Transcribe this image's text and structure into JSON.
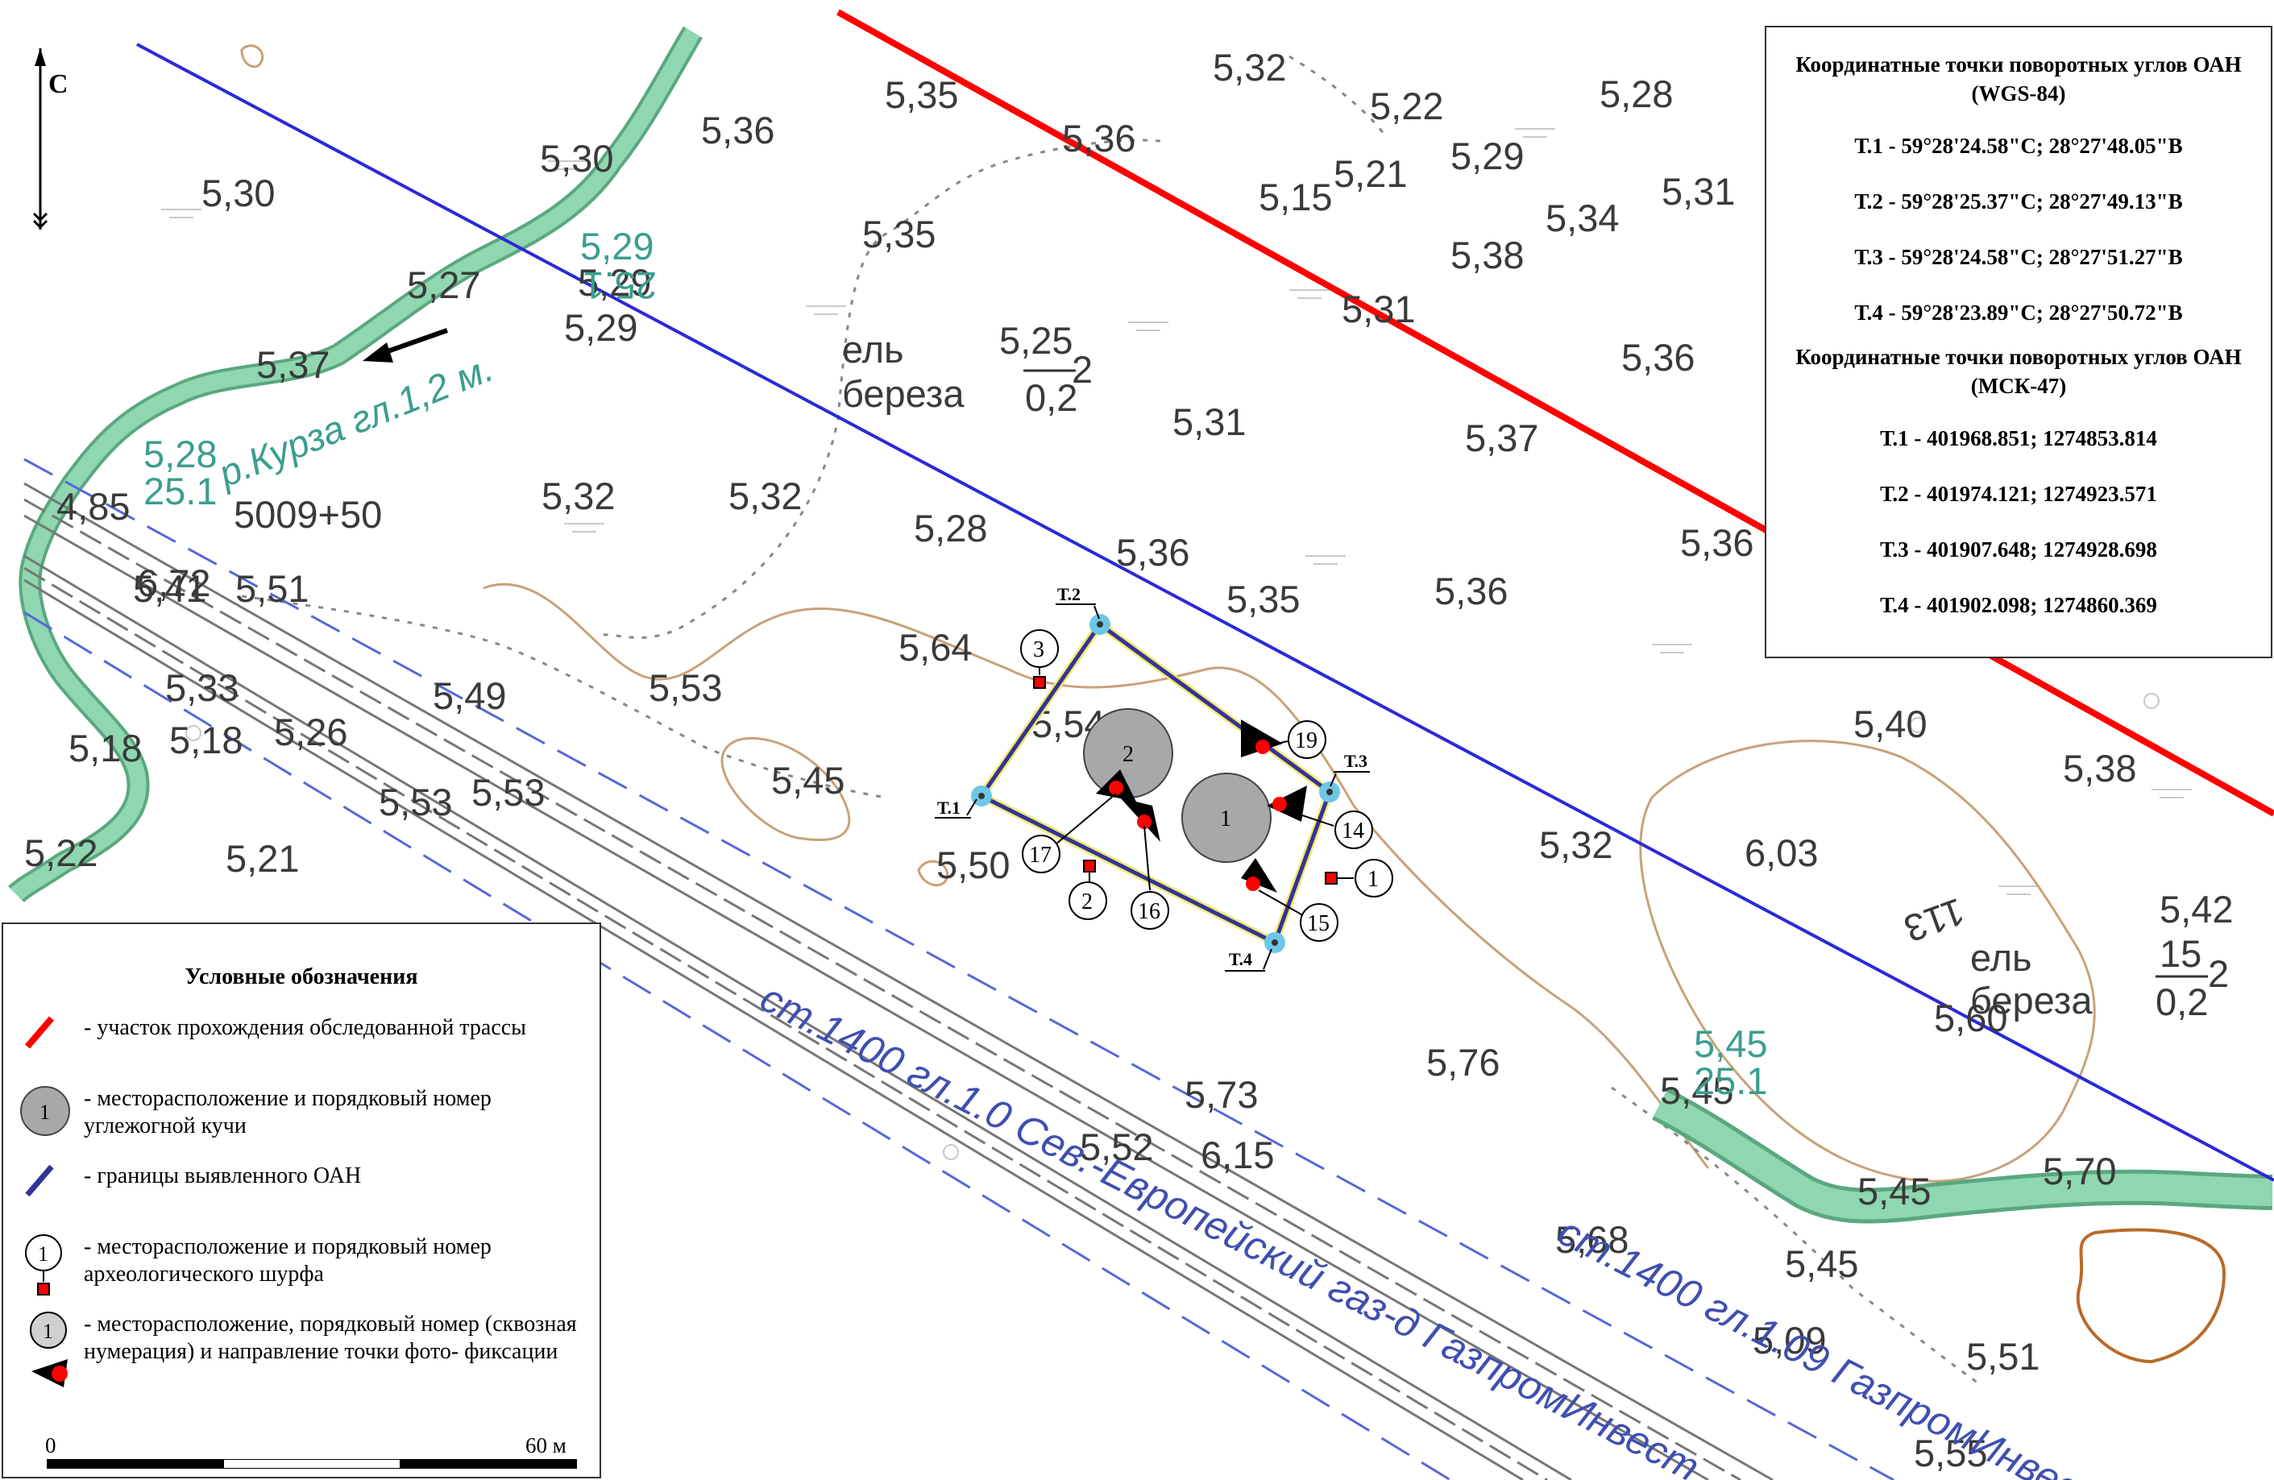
{
  "north_label": "С",
  "coords_panel": {
    "wgs_title": "Координатные точки поворотных углов ОАН (WGS-84)",
    "wgs_points": [
      "Т.1 -  59°28'24.58\"С;  28°27'48.05\"В",
      "Т.2 -  59°28'25.37\"С;  28°27'49.13\"В",
      "Т.3 -  59°28'24.58\"С;  28°27'51.27\"В",
      "Т.4 -  59°28'23.89\"С;  28°27'50.72\"В"
    ],
    "msk_title": "Координатные точки поворотных углов ОАН (МСК-47)",
    "msk_points": [
      "Т.1 -  401968.851;  1274853.814",
      "Т.2 -  401974.121;  1274923.571",
      "Т.3 -  401907.648;  1274928.698",
      "Т.4 -  401902.098;  1274860.369"
    ]
  },
  "legend": {
    "title": "Условные обозначения",
    "items": [
      "- участок прохождения обследованной трассы",
      "- месторасположение и порядковый номер углежогной кучи",
      "- границы выявленного ОАН",
      "- месторасположение и порядковый номер археологического шурфа",
      "- месторасположение, порядковый номер (сквозная нумерация) и направление точки фото- фиксации"
    ],
    "sample_number": "1"
  },
  "scale": {
    "start": "0",
    "end": "60 м"
  },
  "colors": {
    "route": "#ff0000",
    "oan_boundary": "#333399",
    "river": "#7fcfa6",
    "contour": "#c8a27a",
    "pipeline": "#4b5ccf",
    "charcoal_pile": "#a8a8a8",
    "photo_point": "#ff0000",
    "corner_marker": "#6ec6e6"
  },
  "elevations": [
    "5,32",
    "5,35",
    "5,22",
    "5,28",
    "5,36",
    "5,36",
    "5,29",
    "5,30",
    "5,30",
    "5,21",
    "5,15",
    "5,31",
    "5,34",
    "5,35",
    "5,29",
    "5,38",
    "5,27",
    "5,29",
    "5,31",
    "5,34",
    "5,37",
    "5,25",
    "5,36",
    "5,31",
    "5,37",
    "5,32",
    "4,85",
    "5,32",
    "5,28",
    "5,36",
    "5,41",
    "5,51",
    "6,72",
    "5,36",
    "5,35",
    "5,36",
    "5,64",
    "5,33",
    "5,49",
    "5,53",
    "5,18",
    "5,26",
    "5,54",
    "5,40",
    "5,18",
    "5,45",
    "5,38",
    "5,53",
    "5,53",
    "5,32",
    "6,03",
    "5,21",
    "5,50",
    "5,22",
    "5,42",
    "5,76",
    "5,45",
    "5,73",
    "5,52",
    "6,15",
    "5,45",
    "5,70",
    "5,68",
    "5,45",
    "5,09",
    "5,51",
    "5,55",
    "5,60",
    "5,37",
    "5,41"
  ],
  "teal_labels": [
    "5,29",
    "25.1",
    "5,28",
    "25.1",
    "5,45",
    "25.1"
  ],
  "stream_label": "р.Курза гл.1,2 м.",
  "pipeline_label_1": "ст.1400 гл.1.0 Сев.-Европейский газ-д ГазпромИнвест",
  "pipeline_label_2": "ст.1400 гл.1.09 ГазпромИнвест",
  "station_label": "5009+50",
  "veg_labels": [
    "ель",
    "береза",
    "ель",
    "береза"
  ],
  "tree_fraction": {
    "num": "15",
    "den": "0,2",
    "side": "2"
  },
  "line_label_113": "113",
  "corners": [
    "Т.1",
    "Т.2",
    "Т.3",
    "Т.4"
  ],
  "piles": [
    "1",
    "2"
  ],
  "pits": [
    "1",
    "2",
    "3"
  ],
  "photo_points": [
    "14",
    "15",
    "16",
    "17",
    "19"
  ]
}
